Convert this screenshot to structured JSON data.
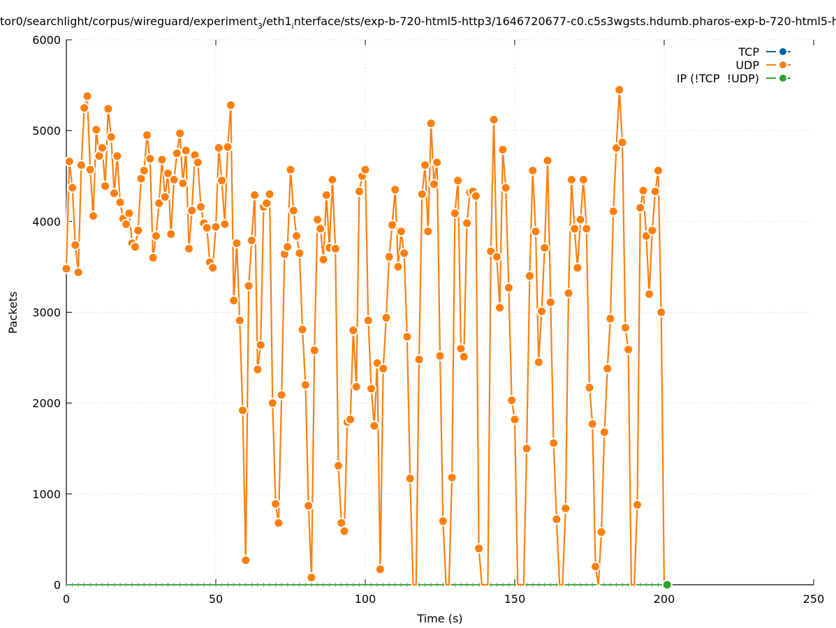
{
  "chart_data": {
    "type": "line",
    "title_parts": [
      "tor0/searchlight/corpus/wireguard/experiment",
      "3",
      "/eth1",
      "i",
      "nterface/sts/exp-b-720-html5-http3/1646720677-c0.c5s3wgsts.hdumb.pharos-exp-b-720-html5-h"
    ],
    "xlabel": "Time (s)",
    "ylabel": "Packets",
    "xlim": [
      0,
      250
    ],
    "ylim": [
      0,
      6000
    ],
    "xticks": [
      "0",
      "50",
      "100",
      "150",
      "200",
      "250"
    ],
    "xtick_values": [
      0,
      50,
      100,
      150,
      200,
      250
    ],
    "yticks": [
      "0",
      "1000",
      "2000",
      "3000",
      "4000",
      "5000",
      "6000"
    ],
    "ytick_values": [
      0,
      1000,
      2000,
      3000,
      4000,
      5000,
      6000
    ],
    "grid": true,
    "legend_position": "top-right",
    "colors": {
      "tcp": "#0060ad",
      "udp": "#ff7f0e",
      "ip": "#2ca02c"
    },
    "series": [
      {
        "key": "tcp",
        "name": "TCP",
        "x_start": 0,
        "x_step": 1,
        "values": []
      },
      {
        "key": "udp",
        "name": "UDP",
        "x_start": 0,
        "x_step": 1,
        "values": [
          3480,
          4660,
          4370,
          3740,
          3440,
          4620,
          5250,
          5380,
          4570,
          4060,
          5010,
          4720,
          4810,
          4390,
          5240,
          4930,
          4310,
          4720,
          4210,
          4030,
          3970,
          4090,
          3760,
          3720,
          3900,
          4470,
          4560,
          4950,
          4690,
          3600,
          3840,
          4200,
          4680,
          4270,
          4530,
          3860,
          4460,
          4750,
          4970,
          4420,
          4780,
          3700,
          4120,
          4730,
          4650,
          4160,
          3980,
          3930,
          3550,
          3490,
          3940,
          4810,
          4450,
          3970,
          4820,
          5280,
          3130,
          3760,
          2910,
          1920,
          270,
          3290,
          3790,
          4290,
          2370,
          2640,
          4160,
          4200,
          4300,
          2000,
          890,
          680,
          2090,
          3640,
          3720,
          4570,
          4120,
          3840,
          3650,
          2810,
          2200,
          870,
          80,
          2580,
          4020,
          3920,
          3580,
          4290,
          3710,
          4460,
          3700,
          1310,
          680,
          590,
          1790,
          1820,
          2800,
          2180,
          4330,
          4500,
          4570,
          2910,
          2160,
          1750,
          2440,
          170,
          2380,
          2940,
          3610,
          3960,
          4350,
          3500,
          3890,
          3650,
          2730,
          1170,
          0,
          0,
          2480,
          4300,
          4620,
          3890,
          5080,
          4410,
          4650,
          2520,
          700,
          0,
          0,
          1180,
          4090,
          4450,
          2600,
          2510,
          3980,
          4320,
          4330,
          4280,
          400,
          0,
          0,
          0,
          3670,
          5120,
          3610,
          3050,
          4790,
          4370,
          3270,
          2030,
          1820,
          0,
          0,
          0,
          1500,
          3400,
          4560,
          3890,
          2450,
          3010,
          3710,
          4670,
          3110,
          1560,
          720,
          0,
          0,
          840,
          3210,
          4460,
          3920,
          3490,
          4020,
          4460,
          3920,
          2170,
          1770,
          200,
          0,
          580,
          1680,
          2380,
          2930,
          4110,
          4810,
          5450,
          4870,
          2830,
          2590,
          0,
          0,
          880,
          4150,
          4340,
          3840,
          3200,
          3900,
          4330,
          4560,
          3000,
          0
        ]
      },
      {
        "key": "ip",
        "name": "IP (!TCP  !UDP)",
        "x_start": 0,
        "x_step": 2,
        "count": 101,
        "value": 0,
        "last_point": [
          201,
          0
        ]
      }
    ]
  }
}
